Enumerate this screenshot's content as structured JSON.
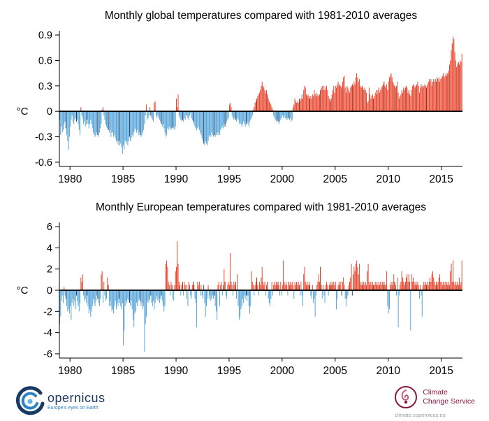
{
  "footer": {
    "copernicus": {
      "wordmark": "opernicus",
      "tagline": "Europe's eyes on Earth"
    },
    "c3s": {
      "line1": "Climate",
      "line2": "Change Service",
      "url": "climate.copernicus.eu"
    }
  },
  "chart_data": [
    {
      "type": "bar",
      "title": "Monthly global temperatures compared with 1981-2010 averages",
      "ylabel": "°C",
      "xlabel": "",
      "frequency": "monthly",
      "start_year": 1979,
      "end_year": 2016,
      "ylim": [
        -0.65,
        0.95
      ],
      "yticks": [
        0.9,
        0.6,
        0.3,
        0,
        -0.3,
        -0.6
      ],
      "ytick_labels": [
        "0.9",
        "0.6",
        "0.3",
        "0",
        "-0.3",
        "-0.6"
      ],
      "xticks": [
        1980,
        1985,
        1990,
        1995,
        2000,
        2005,
        2010,
        2015
      ],
      "positive_color": "#e8391f",
      "negative_color": "#4a9fd8",
      "positive_dark": "#8e1500",
      "negative_dark": "#17365c",
      "highlight_month_index": 7,
      "grid": false,
      "legend": false,
      "values": [
        -0.1,
        -0.28,
        -0.18,
        -0.25,
        -0.22,
        -0.15,
        -0.12,
        -0.2,
        -0.28,
        -0.35,
        -0.45,
        -0.3,
        -0.18,
        -0.1,
        -0.05,
        -0.12,
        -0.15,
        -0.1,
        -0.08,
        -0.12,
        -0.1,
        -0.15,
        -0.22,
        -0.28,
        0.05,
        -0.05,
        -0.08,
        -0.15,
        -0.12,
        -0.18,
        -0.15,
        -0.1,
        -0.15,
        -0.2,
        -0.15,
        -0.1,
        -0.15,
        -0.2,
        -0.25,
        -0.28,
        -0.3,
        -0.28,
        -0.25,
        -0.28,
        -0.3,
        -0.25,
        -0.2,
        -0.15,
        0.02,
        0.05,
        -0.05,
        -0.1,
        -0.15,
        -0.18,
        -0.2,
        -0.22,
        -0.25,
        -0.22,
        -0.3,
        -0.25,
        -0.25,
        -0.3,
        -0.28,
        -0.32,
        -0.35,
        -0.38,
        -0.35,
        -0.4,
        -0.35,
        -0.38,
        -0.42,
        -0.5,
        -0.4,
        -0.45,
        -0.35,
        -0.38,
        -0.35,
        -0.4,
        -0.35,
        -0.3,
        -0.35,
        -0.32,
        -0.28,
        -0.3,
        -0.25,
        -0.22,
        -0.2,
        -0.25,
        -0.22,
        -0.28,
        -0.25,
        -0.28,
        -0.3,
        -0.28,
        -0.25,
        -0.22,
        -0.15,
        -0.05,
        0.08,
        -0.1,
        -0.08,
        -0.05,
        0.05,
        -0.05,
        -0.08,
        -0.1,
        -0.12,
        0.1,
        0.12,
        -0.05,
        -0.08,
        -0.05,
        -0.08,
        -0.1,
        -0.12,
        -0.15,
        -0.18,
        -0.15,
        -0.2,
        -0.25,
        -0.3,
        -0.28,
        -0.2,
        -0.22,
        -0.18,
        -0.2,
        -0.22,
        -0.2,
        -0.18,
        -0.2,
        -0.22,
        -0.18,
        0.15,
        0.05,
        0.2,
        -0.05,
        -0.08,
        -0.1,
        -0.12,
        -0.1,
        -0.12,
        -0.08,
        -0.1,
        -0.05,
        -0.05,
        -0.08,
        -0.1,
        -0.05,
        -0.02,
        -0.08,
        -0.1,
        -0.12,
        -0.15,
        -0.18,
        -0.2,
        -0.22,
        -0.2,
        -0.18,
        -0.22,
        -0.25,
        -0.28,
        -0.32,
        -0.35,
        -0.38,
        -0.4,
        -0.35,
        -0.38,
        -0.4,
        -0.35,
        -0.3,
        -0.28,
        -0.3,
        -0.25,
        -0.28,
        -0.3,
        -0.28,
        -0.3,
        -0.28,
        -0.25,
        -0.28,
        -0.25,
        -0.28,
        -0.22,
        -0.2,
        -0.18,
        -0.2,
        -0.15,
        -0.18,
        -0.15,
        -0.12,
        -0.1,
        -0.08,
        0.08,
        0.1,
        0.05,
        -0.05,
        -0.08,
        -0.1,
        -0.08,
        -0.1,
        -0.12,
        -0.08,
        -0.1,
        -0.15,
        -0.12,
        -0.15,
        -0.18,
        -0.15,
        -0.12,
        -0.15,
        -0.18,
        -0.15,
        -0.12,
        -0.15,
        -0.18,
        -0.12,
        -0.1,
        -0.08,
        -0.05,
        0.02,
        0.05,
        0.1,
        0.12,
        0.15,
        0.18,
        0.2,
        0.22,
        0.25,
        0.3,
        0.35,
        0.3,
        0.28,
        0.25,
        0.22,
        0.25,
        0.2,
        0.15,
        0.12,
        0.1,
        0.08,
        0.05,
        0.02,
        -0.05,
        -0.08,
        -0.1,
        -0.12,
        -0.1,
        -0.12,
        -0.15,
        -0.12,
        -0.1,
        -0.08,
        -0.05,
        -0.08,
        -0.05,
        -0.08,
        -0.1,
        -0.08,
        -0.1,
        -0.08,
        -0.1,
        -0.08,
        -0.12,
        -0.1,
        0.05,
        0.08,
        0.15,
        0.12,
        0.1,
        0.12,
        0.1,
        0.15,
        0.12,
        0.15,
        0.2,
        0.15,
        0.25,
        0.3,
        0.28,
        0.2,
        0.18,
        0.2,
        0.18,
        0.15,
        0.18,
        0.15,
        0.2,
        0.18,
        0.25,
        0.2,
        0.22,
        0.18,
        0.2,
        0.18,
        0.2,
        0.25,
        0.28,
        0.3,
        0.25,
        0.3,
        0.25,
        0.28,
        0.3,
        0.25,
        0.18,
        0.15,
        0.12,
        0.15,
        0.2,
        0.25,
        0.3,
        0.22,
        0.3,
        0.28,
        0.32,
        0.35,
        0.3,
        0.32,
        0.3,
        0.28,
        0.35,
        0.4,
        0.42,
        0.28,
        0.22,
        0.3,
        0.28,
        0.25,
        0.22,
        0.28,
        0.3,
        0.32,
        0.3,
        0.35,
        0.32,
        0.4,
        0.45,
        0.4,
        0.35,
        0.38,
        0.3,
        0.28,
        0.3,
        0.28,
        0.25,
        0.28,
        0.25,
        0.22,
        0.1,
        0.12,
        0.28,
        0.2,
        0.15,
        0.18,
        0.2,
        0.15,
        0.18,
        0.22,
        0.25,
        0.2,
        0.25,
        0.28,
        0.22,
        0.25,
        0.28,
        0.3,
        0.32,
        0.35,
        0.3,
        0.28,
        0.32,
        0.25,
        0.35,
        0.4,
        0.42,
        0.45,
        0.4,
        0.35,
        0.32,
        0.3,
        0.28,
        0.3,
        0.35,
        0.22,
        0.15,
        0.18,
        0.2,
        0.25,
        0.22,
        0.28,
        0.25,
        0.28,
        0.3,
        0.28,
        0.22,
        0.25,
        0.2,
        0.18,
        0.25,
        0.3,
        0.32,
        0.3,
        0.28,
        0.3,
        0.32,
        0.35,
        0.3,
        0.22,
        0.28,
        0.32,
        0.3,
        0.28,
        0.3,
        0.32,
        0.3,
        0.28,
        0.32,
        0.35,
        0.38,
        0.35,
        0.38,
        0.3,
        0.35,
        0.38,
        0.35,
        0.38,
        0.35,
        0.4,
        0.38,
        0.4,
        0.35,
        0.38,
        0.4,
        0.42,
        0.45,
        0.4,
        0.42,
        0.45,
        0.42,
        0.45,
        0.48,
        0.55,
        0.6,
        0.72,
        0.8,
        0.88,
        0.85,
        0.7,
        0.6,
        0.52,
        0.55,
        0.58,
        0.55,
        0.6,
        0.58,
        0.68
      ]
    },
    {
      "type": "bar",
      "title": "Monthly European temperatures compared with 1981-2010 averages",
      "ylabel": "°C",
      "xlabel": "",
      "frequency": "monthly",
      "start_year": 1979,
      "end_year": 2016,
      "ylim": [
        -6.4,
        6.4
      ],
      "yticks": [
        6,
        4,
        2,
        0,
        -2,
        -4,
        -6
      ],
      "ytick_labels": [
        "6",
        "4",
        "2",
        "0",
        "-2",
        "-4",
        "-6"
      ],
      "xticks": [
        1980,
        1985,
        1990,
        1995,
        2000,
        2005,
        2010,
        2015
      ],
      "positive_color": "#e8391f",
      "negative_color": "#4a9fd8",
      "positive_dark": "#8e1500",
      "negative_dark": "#17365c",
      "highlight_month_index": 7,
      "grid": false,
      "legend": false,
      "values": [
        -3.2,
        -2.5,
        -1.0,
        -0.5,
        -1.2,
        0.3,
        -0.5,
        -0.8,
        -1.5,
        -2.0,
        -1.8,
        -2.2,
        -1.5,
        -2.8,
        -1.2,
        -0.8,
        -1.5,
        -1.0,
        -1.8,
        -0.5,
        -1.0,
        -1.5,
        -2.0,
        -1.2,
        1.2,
        0.8,
        1.5,
        -0.5,
        -1.0,
        -0.8,
        -1.2,
        -0.5,
        -1.5,
        -2.2,
        -1.8,
        -2.5,
        -2.0,
        -1.5,
        -0.8,
        -1.2,
        -1.5,
        -1.0,
        -0.5,
        -0.8,
        -1.2,
        -1.5,
        -0.8,
        1.5,
        1.8,
        -1.2,
        0.8,
        -0.5,
        -1.0,
        -0.8,
        1.2,
        0.5,
        -1.5,
        -1.0,
        -1.5,
        -2.0,
        -1.8,
        -2.2,
        -1.5,
        -1.0,
        -1.8,
        -1.2,
        -1.5,
        -0.8,
        -1.2,
        -1.5,
        -1.8,
        -1.2,
        -5.2,
        -3.8,
        -1.5,
        -1.0,
        -1.2,
        -0.8,
        -1.0,
        -1.2,
        -1.5,
        -1.0,
        -1.8,
        -2.8,
        -3.5,
        -2.2,
        -2.0,
        -1.2,
        -1.5,
        -1.0,
        -0.8,
        -1.0,
        -1.5,
        -1.2,
        -1.8,
        -1.5,
        -5.8,
        -3.2,
        -2.5,
        -1.0,
        -1.2,
        -0.8,
        -1.0,
        -0.5,
        -1.2,
        -1.5,
        -1.0,
        -1.8,
        -1.2,
        -0.8,
        -0.5,
        -1.0,
        -0.8,
        -1.2,
        -0.8,
        -0.5,
        -1.0,
        -1.5,
        -2.0,
        -1.5,
        2.5,
        2.8,
        2.2,
        0.8,
        0.5,
        -0.5,
        0.8,
        0.5,
        -0.8,
        -1.0,
        0.5,
        1.8,
        2.2,
        4.6,
        2.5,
        0.8,
        0.5,
        -0.5,
        0.5,
        0.8,
        -0.5,
        0.8,
        0.5,
        -0.8,
        0.5,
        -1.5,
        0.8,
        0.5,
        -0.5,
        -0.8,
        0.5,
        0.8,
        0.5,
        -0.8,
        -1.2,
        -3.5,
        0.8,
        0.5,
        0.8,
        -0.5,
        0.5,
        -0.5,
        -0.8,
        0.5,
        -1.2,
        -2.5,
        -1.5,
        -0.8,
        0.5,
        -0.8,
        -0.5,
        -1.0,
        -0.8,
        -0.5,
        -0.8,
        -0.5,
        -1.5,
        -2.0,
        -2.8,
        0.5,
        0.8,
        -1.5,
        0.5,
        0.8,
        -0.5,
        0.5,
        2.0,
        0.8,
        -0.5,
        -0.8,
        0.5,
        0.8,
        0.5,
        3.5,
        0.8,
        0.5,
        -0.5,
        0.8,
        0.5,
        0.8,
        -0.8,
        1.5,
        -1.5,
        -2.8,
        -2.5,
        -1.8,
        -1.5,
        -0.8,
        -1.2,
        -0.5,
        -0.8,
        -0.5,
        -1.0,
        -0.5,
        -1.5,
        -2.2,
        -1.5,
        1.8,
        0.8,
        0.5,
        -0.5,
        0.5,
        0.8,
        1.2,
        0.5,
        -0.5,
        0.8,
        0.5,
        1.2,
        2.2,
        0.8,
        0.5,
        0.8,
        -0.5,
        0.5,
        0.8,
        -0.8,
        -1.2,
        -1.5,
        -0.8,
        0.8,
        -0.5,
        0.5,
        0.8,
        0.5,
        0.8,
        0.5,
        0.8,
        0.5,
        -0.5,
        0.8,
        -0.5,
        0.5,
        2.8,
        0.8,
        0.5,
        0.8,
        0.5,
        -0.5,
        0.8,
        0.5,
        0.8,
        0.5,
        0.8,
        0.5,
        -0.8,
        0.8,
        0.5,
        0.8,
        0.5,
        0.8,
        0.5,
        -0.5,
        0.8,
        -0.5,
        -1.5,
        1.5,
        2.2,
        0.8,
        0.5,
        0.8,
        0.5,
        0.8,
        0.5,
        -0.5,
        -0.8,
        0.5,
        -1.2,
        -0.8,
        -2.5,
        -0.5,
        0.5,
        0.8,
        1.5,
        0.8,
        2.2,
        0.5,
        -0.8,
        0.5,
        -0.5,
        -1.2,
        0.5,
        0.8,
        0.5,
        -0.5,
        0.5,
        0.8,
        0.5,
        0.8,
        0.5,
        0.8,
        0.5,
        0.8,
        -1.8,
        -0.8,
        0.5,
        0.8,
        0.5,
        0.8,
        -0.5,
        0.8,
        1.2,
        0.5,
        -0.8,
        -1.5,
        -0.8,
        -0.5,
        0.5,
        0.8,
        1.2,
        2.5,
        -0.5,
        1.5,
        2.2,
        1.8,
        2.5,
        2.8,
        2.2,
        1.5,
        2.5,
        0.8,
        0.5,
        0.8,
        0.5,
        0.8,
        0.5,
        0.8,
        0.5,
        1.8,
        2.5,
        0.8,
        0.5,
        0.8,
        0.5,
        0.8,
        0.5,
        0.5,
        0.8,
        0.5,
        0.8,
        0.5,
        0.8,
        0.5,
        0.8,
        0.5,
        0.8,
        0.5,
        0.8,
        0.5,
        0.5,
        1.8,
        -1.5,
        -2.2,
        -1.8,
        0.5,
        0.8,
        0.5,
        0.8,
        1.5,
        0.8,
        0.5,
        -0.5,
        1.2,
        -3.5,
        -0.5,
        0.5,
        0.8,
        1.8,
        1.2,
        0.8,
        0.5,
        0.8,
        1.2,
        1.5,
        0.8,
        1.5,
        0.8,
        -3.8,
        1.5,
        0.8,
        1.2,
        0.8,
        0.5,
        0.8,
        0.5,
        0.8,
        0.5,
        -0.8,
        0.5,
        -0.5,
        -2.5,
        0.5,
        0.8,
        0.5,
        0.8,
        0.5,
        0.8,
        0.5,
        0.8,
        1.2,
        0.8,
        1.5,
        1.8,
        1.2,
        0.8,
        0.5,
        0.8,
        0.5,
        0.8,
        1.2,
        1.5,
        0.8,
        0.8,
        0.5,
        0.8,
        0.5,
        0.8,
        0.5,
        0.8,
        0.5,
        0.8,
        0.5,
        1.8,
        2.5,
        0.8,
        2.8,
        0.8,
        0.5,
        0.8,
        0.5,
        0.8,
        0.5,
        1.2,
        0.5,
        0.8,
        2.8
      ]
    }
  ]
}
